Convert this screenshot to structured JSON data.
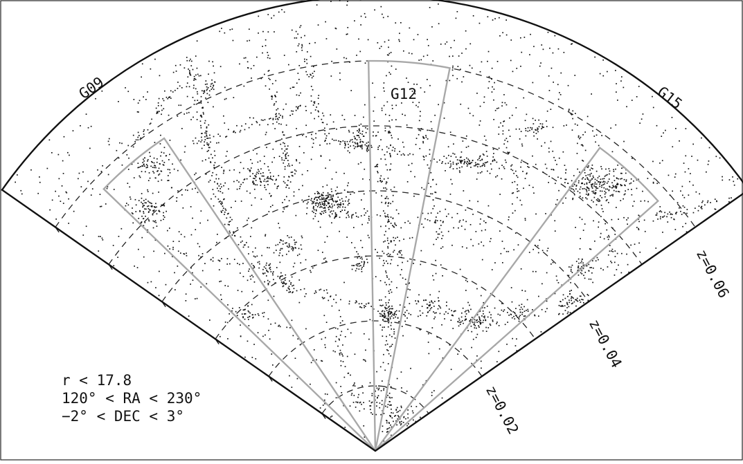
{
  "chart_data": {
    "type": "scatter",
    "projection": "wedge",
    "axis": "redshift",
    "redshift_labels": [
      "z=0.02",
      "z=0.04",
      "z=0.06"
    ],
    "redshift_values": [
      0.02,
      0.04,
      0.06
    ],
    "inner_arcs_z": [
      0.01,
      0.02,
      0.03,
      0.04,
      0.05,
      0.06
    ],
    "outer_z": 0.07,
    "ra_range_deg": [
      120,
      230
    ],
    "fields": [
      {
        "name": "G09",
        "ra_range_deg": [
          129,
          141
        ],
        "z_range": [
          0.0,
          0.058
        ]
      },
      {
        "name": "G12",
        "ra_range_deg": [
          174,
          186
        ],
        "z_range": [
          0.0,
          0.06
        ]
      },
      {
        "name": "G15",
        "ra_range_deg": [
          211.5,
          223.5
        ],
        "z_range": [
          0.0,
          0.058
        ]
      }
    ],
    "overlay_text": [
      "r < 17.8",
      "120° < RA < 230°",
      "−2° < DEC < 3°"
    ],
    "point_color": "#111111",
    "field_box_color": "#a8a8a8"
  }
}
